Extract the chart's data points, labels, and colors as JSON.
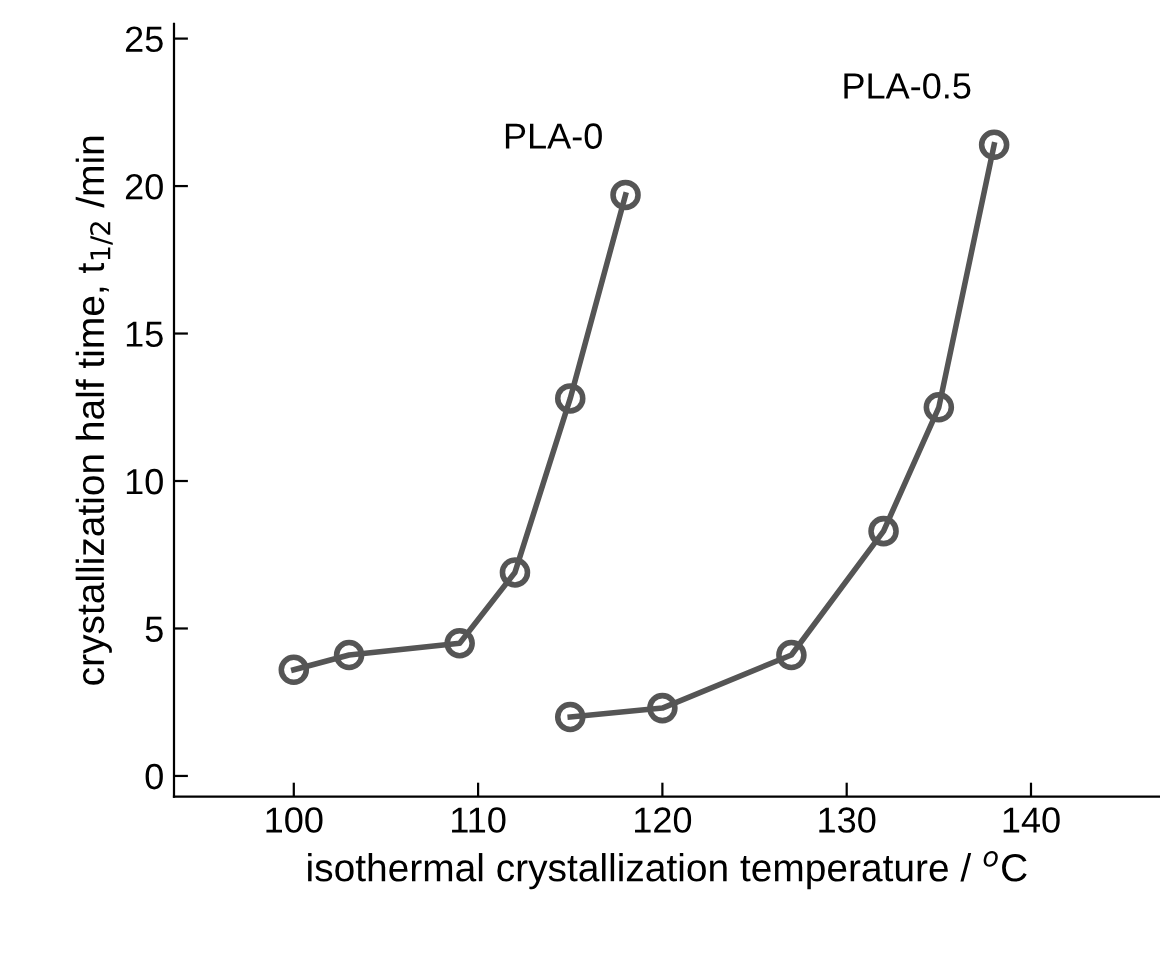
{
  "chart_data": {
    "type": "line",
    "xlabel": "isothermal crystallization temperature / $^{o}$C",
    "ylabel": "crystallization half time, t$_{1/2}$ /min",
    "series": [
      {
        "name": "PLA-0",
        "color": "#555555",
        "x": [
          100,
          103,
          109,
          112,
          115,
          118
        ],
        "values": [
          3.6,
          4.1,
          4.5,
          6.9,
          12.8,
          19.7
        ]
      },
      {
        "name": "PLA-0.5",
        "color": "#555555",
        "x": [
          115,
          120,
          127,
          132,
          135,
          138
        ],
        "values": [
          2.0,
          2.3,
          4.1,
          8.3,
          12.5,
          21.4
        ]
      }
    ],
    "xlim": [
      93.5,
      147
    ],
    "xticks": [
      100,
      110,
      120,
      130,
      140
    ],
    "ylim": [
      -0.7,
      25.5
    ],
    "yticks": [
      0,
      5,
      10,
      15,
      20,
      25
    ],
    "grid": false,
    "legend": false,
    "marker": "circle",
    "line_style": "solid"
  }
}
